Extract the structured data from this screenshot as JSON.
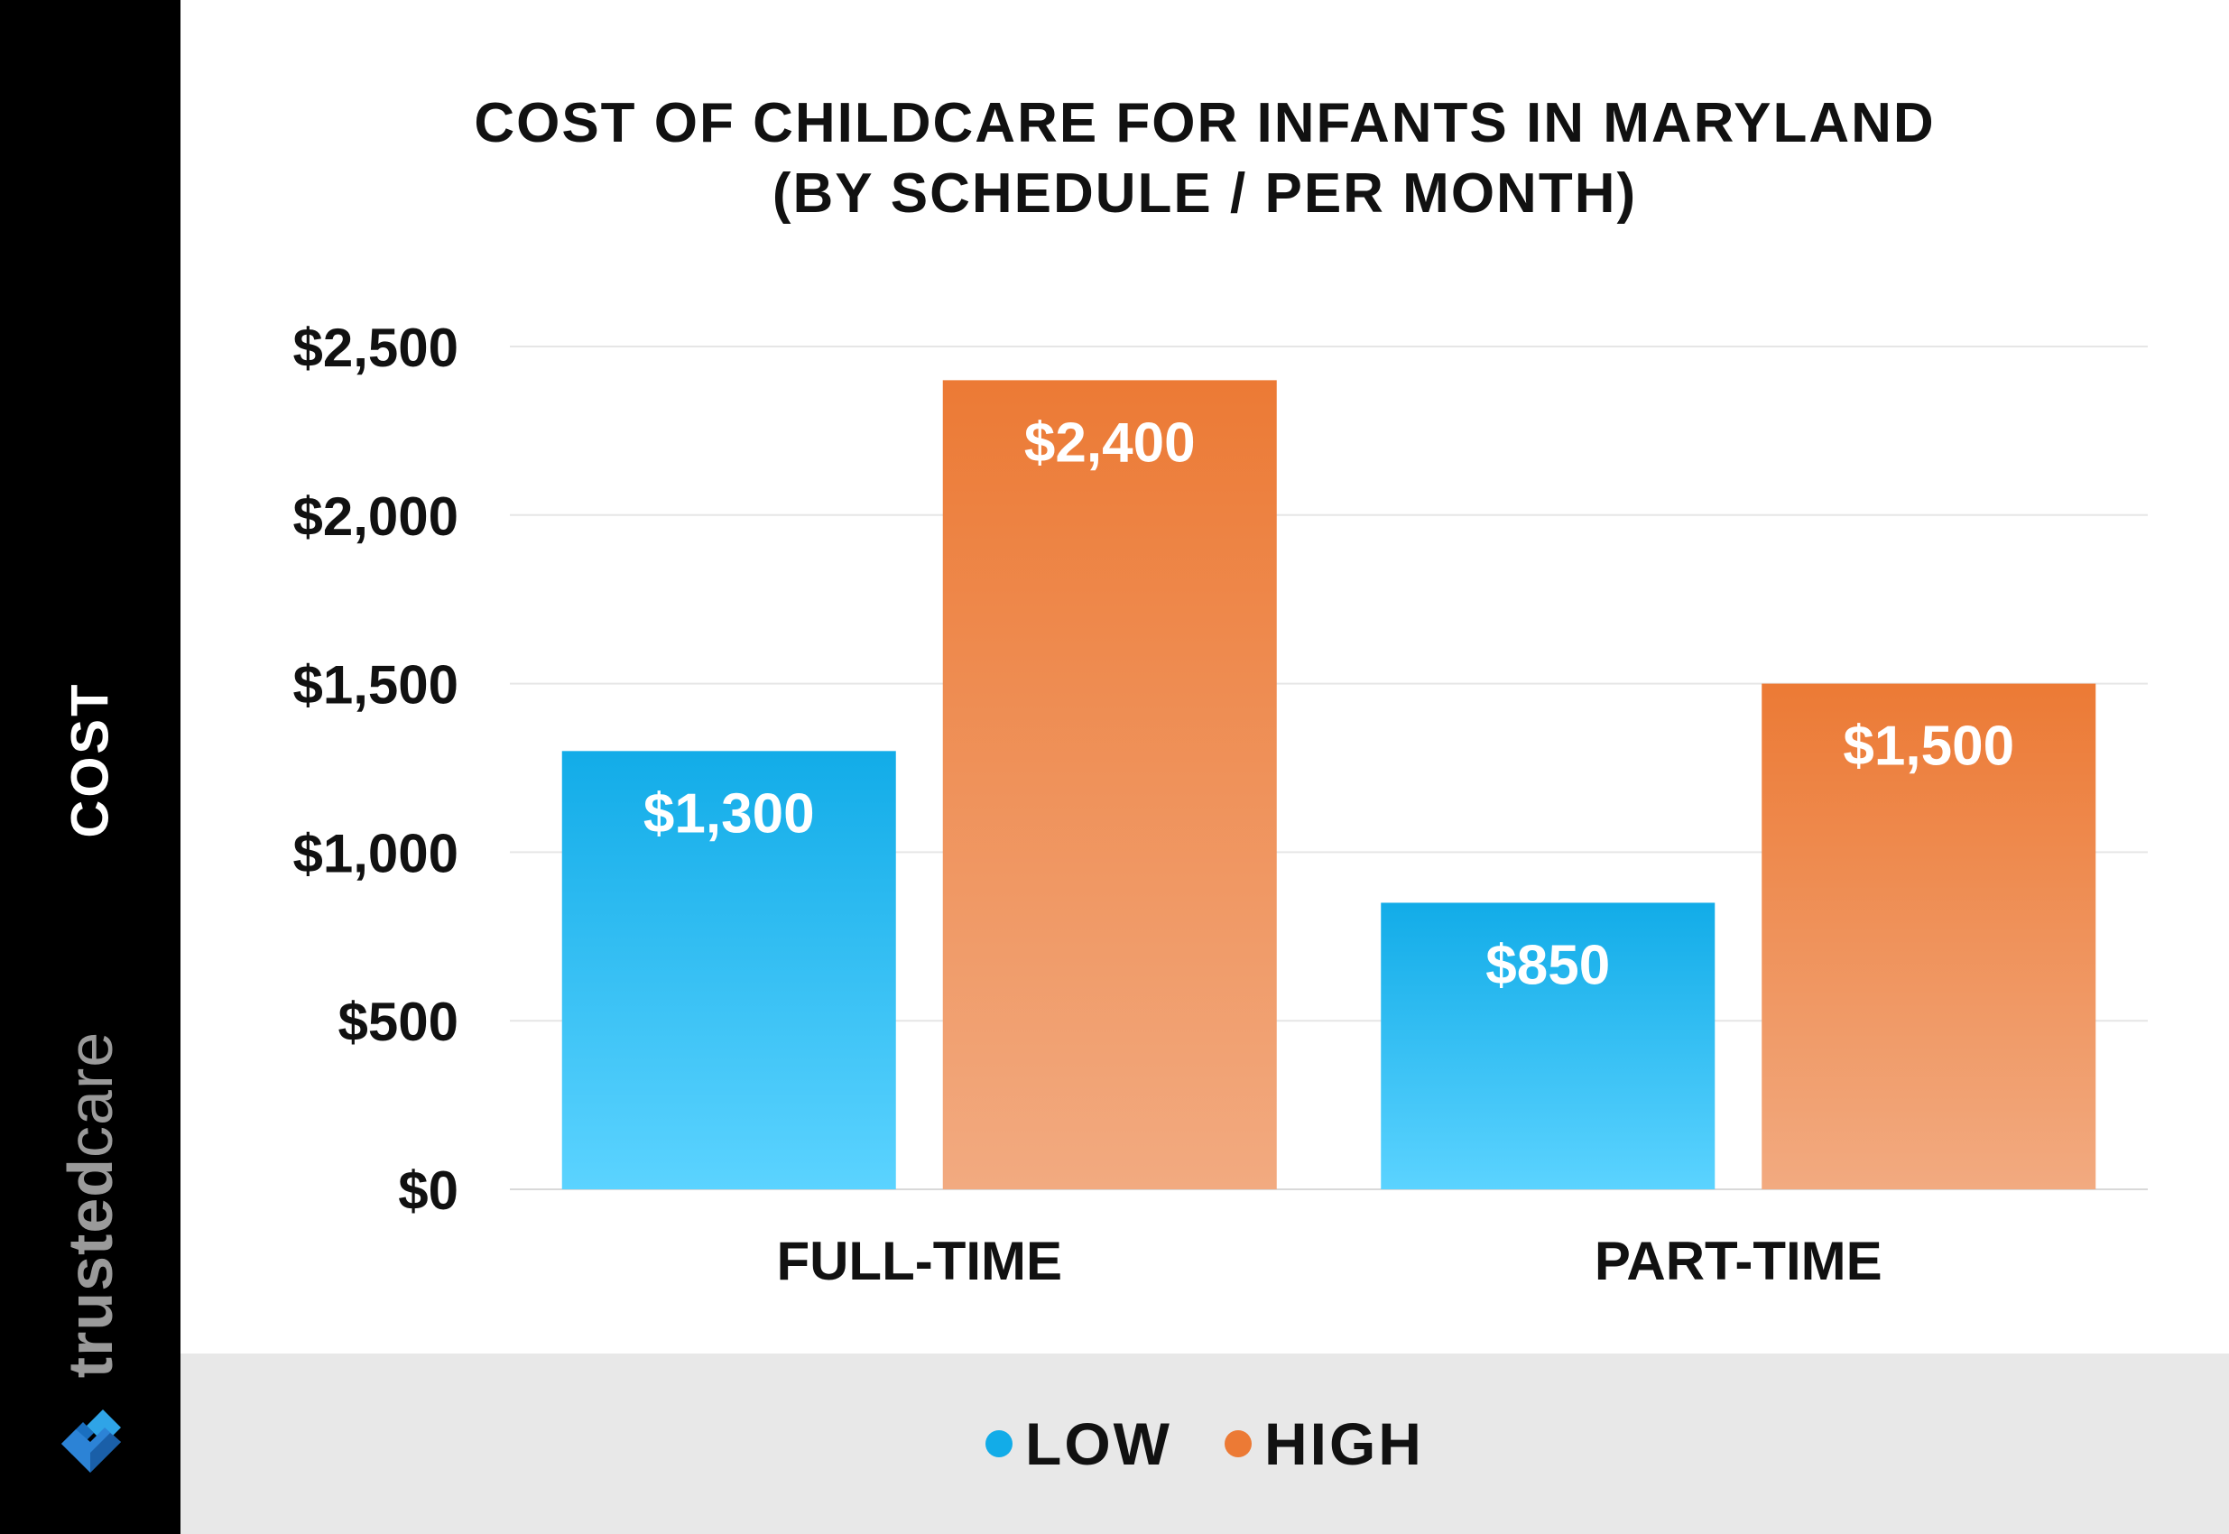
{
  "brand": {
    "name_part1": "trusted",
    "name_part2": "care",
    "logo_icon": "trustedcare-heart-logo-icon",
    "sidebar_color": "#000000"
  },
  "legend": {
    "items": [
      {
        "label": "LOW",
        "color": "#12ACE8",
        "icon": "dot-icon"
      },
      {
        "label": "HIGH",
        "color": "#EC7A35",
        "icon": "dot-icon"
      }
    ]
  },
  "chart_data": {
    "type": "bar",
    "title_line1": "COST OF CHILDCARE FOR INFANTS IN MARYLAND",
    "title_line2": "(BY SCHEDULE / PER MONTH)",
    "xlabel": "",
    "ylabel": "COST",
    "categories": [
      "FULL-TIME",
      "PART-TIME"
    ],
    "series": [
      {
        "name": "LOW",
        "values": [
          1300,
          850
        ],
        "labels": [
          "$1,300",
          "$850"
        ],
        "color_top": "#12ACE8",
        "color_bottom": "#5BD3FF"
      },
      {
        "name": "HIGH",
        "values": [
          2400,
          1500
        ],
        "labels": [
          "$2,400",
          "$1,500"
        ],
        "color_top": "#EC7A35",
        "color_bottom": "#F2AA80"
      }
    ],
    "ylim": [
      0,
      2500
    ],
    "yticks": [
      0,
      500,
      1000,
      1500,
      2000,
      2500
    ],
    "ytick_labels": [
      "$0",
      "$500",
      "$1,000",
      "$1,500",
      "$2,000",
      "$2,500"
    ],
    "grid": true,
    "legend_position": "bottom"
  }
}
